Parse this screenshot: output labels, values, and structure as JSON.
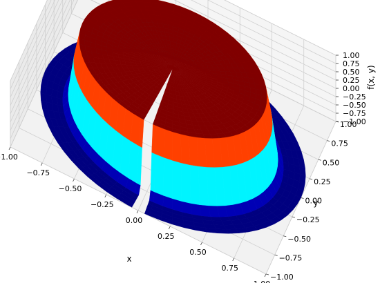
{
  "chart_data": {
    "type": "surface3d",
    "xlabel": "x",
    "ylabel": "y",
    "zlabel": "f(x, y)",
    "xlim": [
      -1.0,
      1.0
    ],
    "ylim": [
      -1.0,
      1.0
    ],
    "zlim": [
      -1.0,
      1.0
    ],
    "x_ticks": [
      "−1.00",
      "−0.75",
      "−0.50",
      "−0.25",
      "0.00",
      "0.25",
      "0.50",
      "0.75",
      "1.00"
    ],
    "y_ticks": [
      "−1.00",
      "−0.75",
      "−0.50",
      "−0.25",
      "0.00",
      "0.25",
      "0.50",
      "0.75",
      "1.00"
    ],
    "z_ticks": [
      "−1.00",
      "−0.75",
      "−0.50",
      "−0.25",
      "0.00",
      "0.25",
      "0.50",
      "0.75",
      "1.00"
    ],
    "colormap": "jet",
    "grid": true,
    "pane_color": "#f2f2f2",
    "surface": {
      "domain": "unit disk",
      "outer_value": -1.0,
      "inner_value": 1.0,
      "inner_radius": 0.72,
      "transition_width": 0.08,
      "slit": "radial gap along the negative y half of the x = 0 line"
    }
  }
}
